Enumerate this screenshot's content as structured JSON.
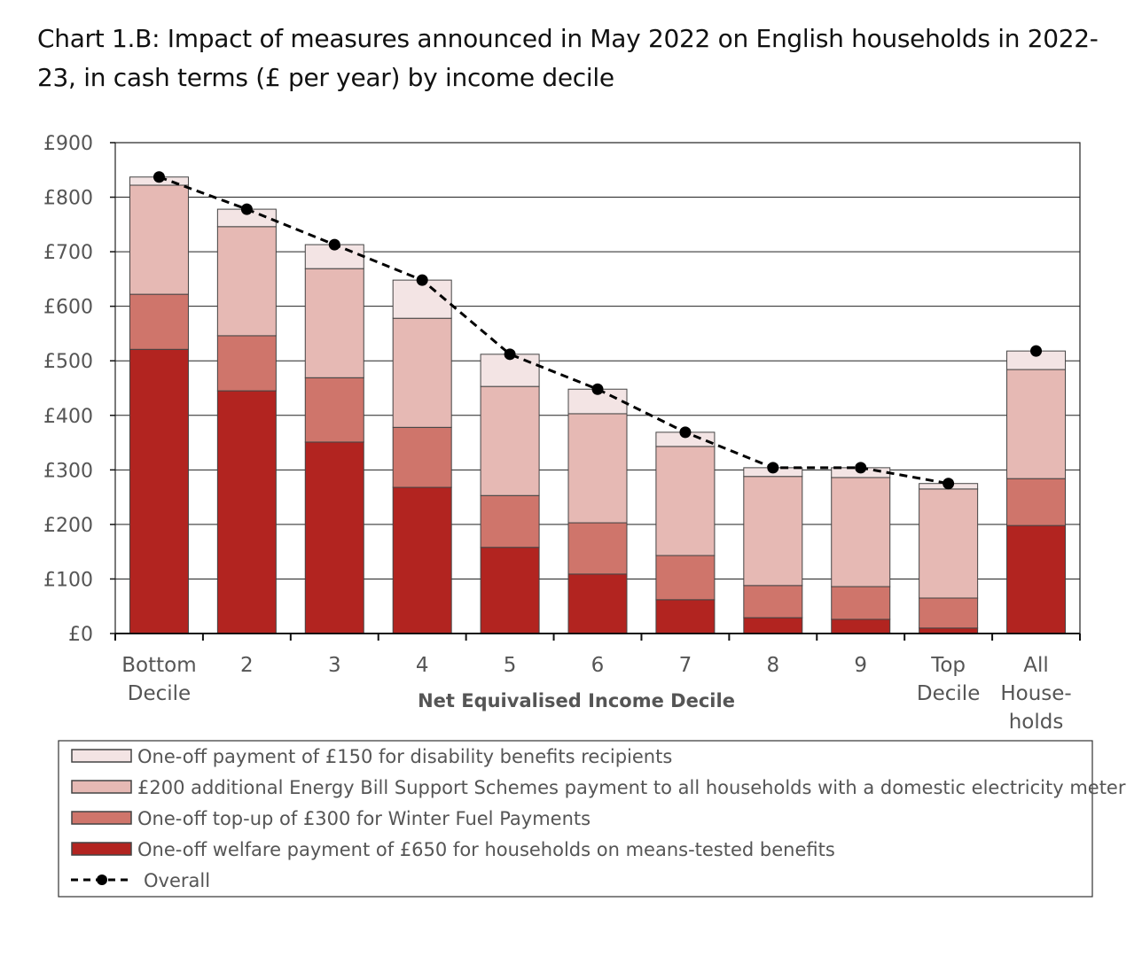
{
  "chart_data": {
    "type": "bar",
    "stacked": true,
    "title": "Chart 1.B: Impact of measures announced in May 2022 on English households in 2022-23, in cash terms (£ per year) by income decile",
    "xlabel": "Net Equivalised Income Decile",
    "ylabel": "",
    "ylim": [
      0,
      900
    ],
    "yticks": [
      "£0",
      "£100",
      "£200",
      "£300",
      "£400",
      "£500",
      "£600",
      "£700",
      "£800",
      "£900"
    ],
    "grid": true,
    "legend_placement": "bottom",
    "categories": [
      [
        "Bottom",
        "Decile"
      ],
      [
        "2"
      ],
      [
        "3"
      ],
      [
        "4"
      ],
      [
        "5"
      ],
      [
        "6"
      ],
      [
        "7"
      ],
      [
        "8"
      ],
      [
        "9"
      ],
      [
        "Top",
        "Decile"
      ],
      [
        "All",
        "House-",
        "holds"
      ]
    ],
    "series": [
      {
        "name": "One-off welfare payment of £650 for households on means-tested benefits",
        "color": "#b22420",
        "values": [
          521,
          445,
          351,
          268,
          158,
          109,
          62,
          29,
          26,
          10,
          198
        ]
      },
      {
        "name": "One-off  top-up of £300 for Winter Fuel Payments",
        "color": "#cf756b",
        "values": [
          101,
          101,
          118,
          110,
          95,
          94,
          81,
          59,
          60,
          55,
          86
        ]
      },
      {
        "name": "£200 additional Energy Bill Support Schemes payment to all households with a domestic electricity meter",
        "color": "#e6b9b4",
        "values": [
          200,
          200,
          200,
          200,
          200,
          200,
          200,
          200,
          200,
          200,
          200
        ]
      },
      {
        "name": "One-off payment of £150 for  disability benefits  recipients",
        "color": "#f3e4e4",
        "values": [
          15,
          32,
          44,
          70,
          59,
          45,
          26,
          16,
          18,
          10,
          34
        ]
      }
    ],
    "line": {
      "name": "Overall",
      "color": "#000000",
      "style": "dashed",
      "values": [
        837,
        778,
        713,
        648,
        512,
        448,
        369,
        304,
        304,
        275,
        518
      ]
    }
  }
}
